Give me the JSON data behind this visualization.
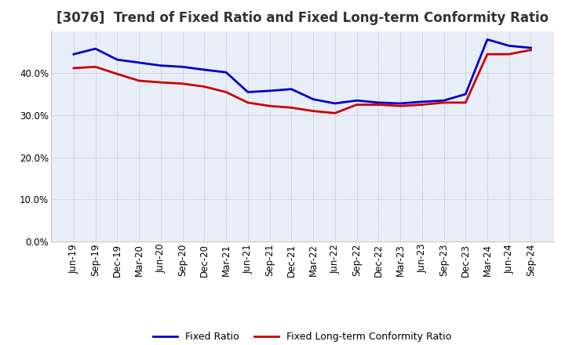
{
  "title": "[3076]  Trend of Fixed Ratio and Fixed Long-term Conformity Ratio",
  "x_labels": [
    "Jun-19",
    "Sep-19",
    "Dec-19",
    "Mar-20",
    "Jun-20",
    "Sep-20",
    "Dec-20",
    "Mar-21",
    "Jun-21",
    "Sep-21",
    "Dec-21",
    "Mar-22",
    "Jun-22",
    "Sep-22",
    "Dec-22",
    "Mar-23",
    "Jun-23",
    "Sep-23",
    "Dec-23",
    "Mar-24",
    "Jun-24",
    "Sep-24"
  ],
  "fixed_ratio": [
    44.5,
    45.8,
    43.2,
    42.5,
    41.8,
    41.5,
    40.8,
    40.2,
    35.5,
    35.8,
    36.2,
    33.8,
    32.8,
    33.5,
    33.0,
    32.8,
    33.2,
    33.5,
    35.0,
    48.0,
    46.5,
    46.0
  ],
  "fixed_lt_ratio": [
    41.2,
    41.5,
    39.8,
    38.2,
    37.8,
    37.5,
    36.8,
    35.5,
    33.0,
    32.2,
    31.8,
    31.0,
    30.5,
    32.5,
    32.5,
    32.2,
    32.5,
    33.0,
    33.0,
    44.5,
    44.5,
    45.5
  ],
  "fixed_ratio_color": "#0000cc",
  "fixed_lt_ratio_color": "#cc0000",
  "ylim": [
    0,
    50
  ],
  "yticks": [
    0,
    10,
    20,
    30,
    40
  ],
  "plot_bg_color": "#e8eef8",
  "background_color": "#ffffff",
  "grid_color": "#aaaacc",
  "title_fontsize": 12,
  "legend_fontsize": 9,
  "tick_fontsize": 8.5
}
